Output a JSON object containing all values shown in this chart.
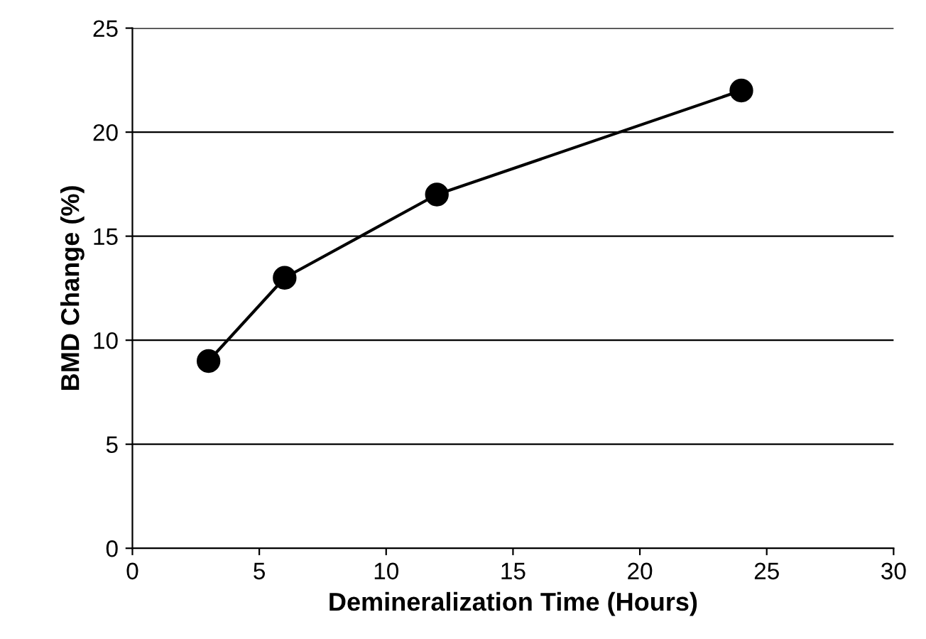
{
  "chart_data": {
    "type": "line",
    "xlabel": "Demineralization Time (Hours)",
    "ylabel": "BMD Change (%)",
    "x": [
      3,
      6,
      12,
      24
    ],
    "series": [
      {
        "color": "#000000",
        "values": [
          9,
          13,
          17,
          22
        ]
      }
    ],
    "xlim": [
      0,
      30
    ],
    "xticks": [
      0,
      5,
      10,
      15,
      20,
      25,
      30
    ],
    "ylim": [
      0,
      25
    ],
    "yticks": [
      0,
      5,
      10,
      15,
      20,
      25
    ],
    "grid": "y",
    "marker": "circle",
    "line_style": "solid",
    "legend": false
  }
}
